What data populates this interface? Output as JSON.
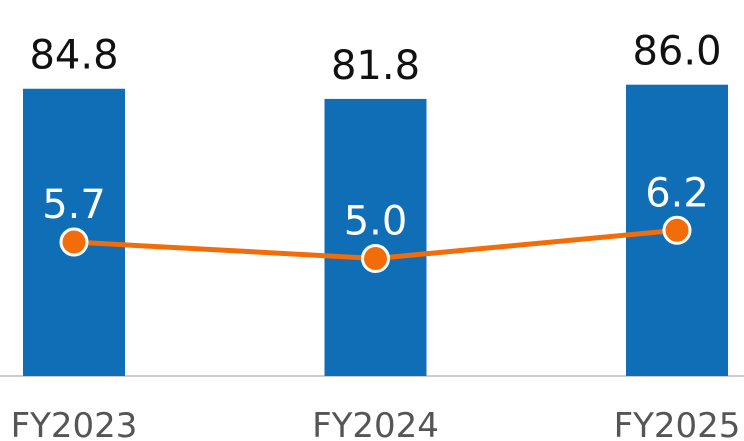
{
  "chart_data": {
    "type": "bar-line",
    "categories": [
      "FY2023",
      "FY2024",
      "FY2025"
    ],
    "series": [
      {
        "type": "bar",
        "color": "#106eb6",
        "values": [
          84.8,
          81.8,
          86.0
        ],
        "value_labels": [
          "84.8",
          "81.8",
          "86.0"
        ]
      },
      {
        "type": "line",
        "axis": "y2",
        "color": "#f36c0a",
        "values": [
          5.7,
          5.0,
          6.2
        ],
        "value_labels": [
          "5.7",
          "5.0",
          "6.2"
        ]
      }
    ],
    "ylim": [
      0,
      111
    ],
    "y2lim": [
      0,
      16
    ]
  }
}
